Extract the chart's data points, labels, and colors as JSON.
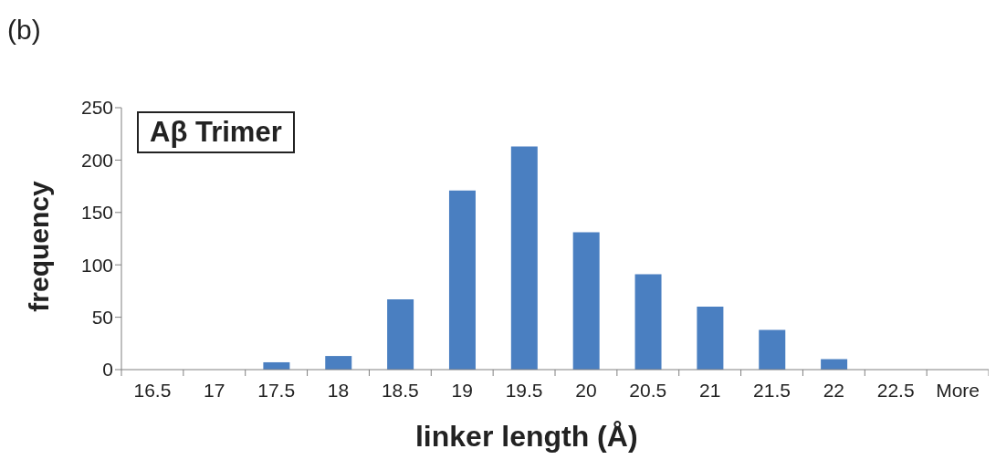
{
  "chart_data": {
    "type": "bar",
    "xlabel": "linker length (Å)",
    "ylabel": "frequency",
    "annotations": [
      "(b)",
      "Aβ Trimer"
    ],
    "categories": [
      "16.5",
      "17",
      "17.5",
      "18",
      "18.5",
      "19",
      "19.5",
      "20",
      "20.5",
      "21",
      "21.5",
      "22",
      "22.5",
      "More"
    ],
    "values": [
      0,
      0,
      7,
      13,
      67,
      171,
      213,
      131,
      91,
      60,
      38,
      10,
      0,
      0
    ],
    "color": "#4a7fc1",
    "ylim": [
      0,
      250
    ],
    "yticks": [
      0,
      50,
      100,
      150,
      200,
      250
    ],
    "grid": false,
    "legend": false
  }
}
